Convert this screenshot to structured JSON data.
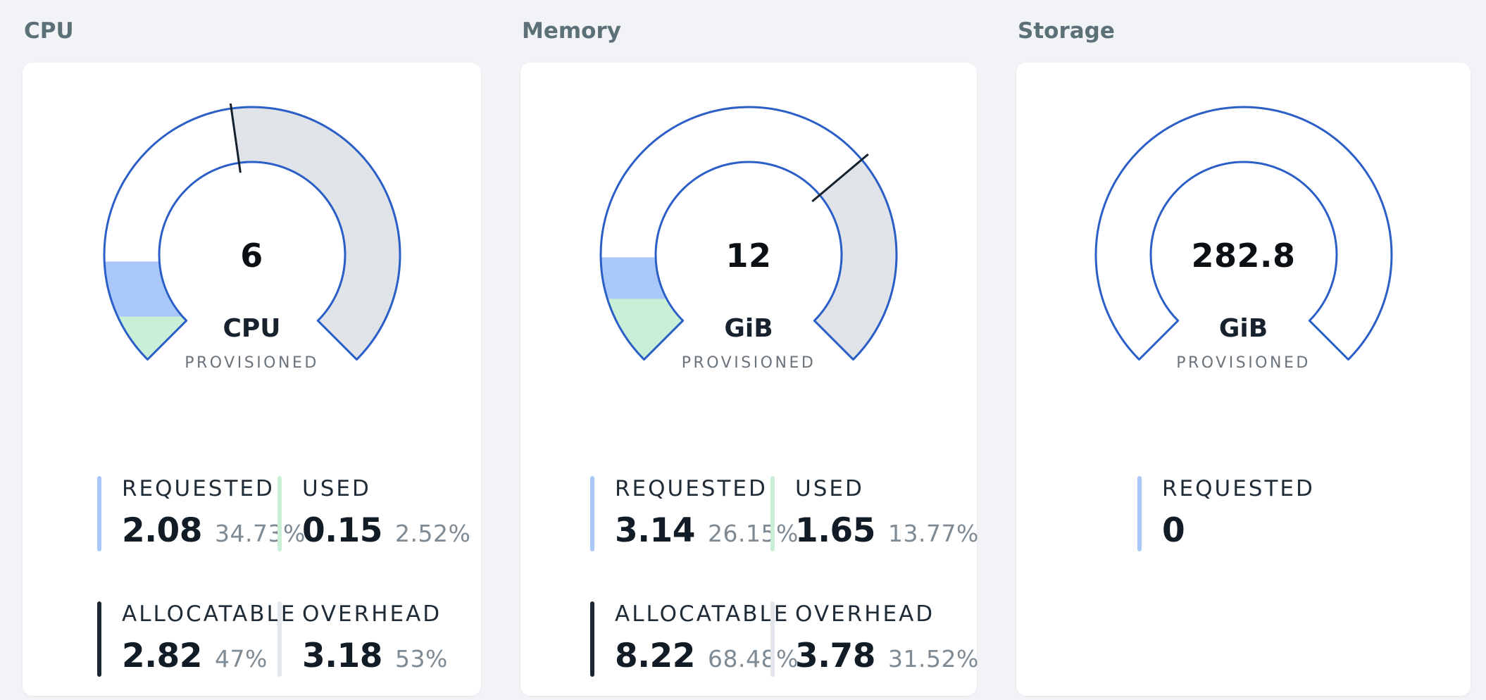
{
  "colors": {
    "page_bg": "#f2f3f6",
    "card_bg": "#ffffff",
    "title": "#5c7078",
    "ring_stroke": "#2b5fc7",
    "ring_fill": "#ffffff",
    "overhead_fill": "#e0e4e9",
    "requested_fill": "#a9c7f8",
    "used_fill": "#c9efd6",
    "tick": "#15222e",
    "value_text": "#0b1015",
    "unit_text": "#17222e",
    "caption_text": "#6b737b",
    "label_text": "#1f2c38",
    "stat_value_text": "#121c26",
    "pct_text": "#7e8a94",
    "bar_dark": "#1b2733",
    "bar_gray": "#e3e6ea"
  },
  "cards": [
    {
      "title": "CPU",
      "gauge": {
        "value": "6",
        "unit": "CPU",
        "caption": "PROVISIONED",
        "allocatable_pct": 47,
        "used_pct": 2.52,
        "requested_pct": 34.73
      },
      "stats": [
        [
          {
            "label": "REQUESTED",
            "value": "2.08",
            "pct": "34.73%",
            "bar": "blue"
          },
          {
            "label": "USED",
            "value": "0.15",
            "pct": "2.52%",
            "bar": "green"
          }
        ],
        [
          {
            "label": "ALLOCATABLE",
            "value": "2.82",
            "pct": "47%",
            "bar": "dark"
          },
          {
            "label": "OVERHEAD",
            "value": "3.18",
            "pct": "53%",
            "bar": "gray"
          }
        ]
      ]
    },
    {
      "title": "Memory",
      "gauge": {
        "value": "12",
        "unit": "GiB",
        "caption": "PROVISIONED",
        "allocatable_pct": 68.48,
        "used_pct": 13.77,
        "requested_pct": 26.15
      },
      "stats": [
        [
          {
            "label": "REQUESTED",
            "value": "3.14",
            "pct": "26.15%",
            "bar": "blue"
          },
          {
            "label": "USED",
            "value": "1.65",
            "pct": "13.77%",
            "bar": "green"
          }
        ],
        [
          {
            "label": "ALLOCATABLE",
            "value": "8.22",
            "pct": "68.48%",
            "bar": "dark"
          },
          {
            "label": "OVERHEAD",
            "value": "3.78",
            "pct": "31.52%",
            "bar": "gray"
          }
        ]
      ]
    },
    {
      "title": "Storage",
      "gauge": {
        "value": "282.8",
        "unit": "GiB",
        "caption": "PROVISIONED",
        "allocatable_pct": null,
        "used_pct": 0,
        "requested_pct": 0
      },
      "stats": [
        [
          {
            "label": "REQUESTED",
            "value": "0",
            "pct": "",
            "bar": "blue"
          }
        ]
      ]
    }
  ],
  "chart_data": [
    {
      "type": "gauge",
      "title": "CPU",
      "provisioned": 6,
      "unit": "CPU",
      "metrics": {
        "requested": 2.08,
        "requested_pct": 34.73,
        "used": 0.15,
        "used_pct": 2.52,
        "allocatable": 2.82,
        "allocatable_pct": 47,
        "overhead": 3.18,
        "overhead_pct": 53
      }
    },
    {
      "type": "gauge",
      "title": "Memory",
      "provisioned": 12,
      "unit": "GiB",
      "metrics": {
        "requested": 3.14,
        "requested_pct": 26.15,
        "used": 1.65,
        "used_pct": 13.77,
        "allocatable": 8.22,
        "allocatable_pct": 68.48,
        "overhead": 3.78,
        "overhead_pct": 31.52
      }
    },
    {
      "type": "gauge",
      "title": "Storage",
      "provisioned": 282.8,
      "unit": "GiB",
      "metrics": {
        "requested": 0
      }
    }
  ]
}
